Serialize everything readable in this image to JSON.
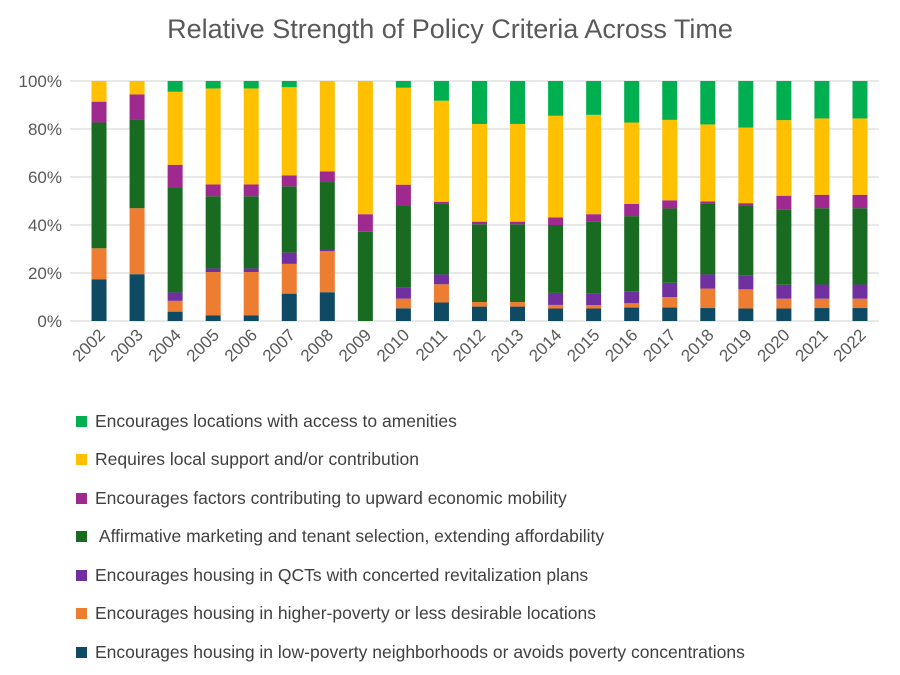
{
  "chart_data": {
    "type": "bar",
    "stacked": "percent",
    "title": "Relative Strength of Policy Criteria Across Time",
    "xlabel": "",
    "ylabel": "",
    "ylim": [
      0,
      100
    ],
    "yticks": [
      "0%",
      "20%",
      "40%",
      "60%",
      "80%",
      "100%"
    ],
    "grid": true,
    "legend_position": "bottom",
    "categories": [
      "2002",
      "2003",
      "2004",
      "2005",
      "2006",
      "2007",
      "2008",
      "2009",
      "2010",
      "2011",
      "2012",
      "2013",
      "2014",
      "2015",
      "2016",
      "2017",
      "2018",
      "2019",
      "2020",
      "2021",
      "2022"
    ],
    "series": [
      {
        "name": "Encourages housing in low-poverty neighborhoods or avoids poverty concentrations",
        "color": "#0E4A63",
        "values": [
          17.4,
          19.5,
          3.9,
          2.4,
          2.4,
          11.4,
          12.0,
          0,
          5.3,
          7.7,
          6.0,
          6.0,
          5.2,
          5.2,
          5.6,
          5.6,
          5.4,
          5.2,
          5.2,
          5.4,
          5.4
        ]
      },
      {
        "name": "Encourages housing in higher-poverty or less desirable locations",
        "color": "#ED7D31",
        "values": [
          12.9,
          27.5,
          4.5,
          18.0,
          18.0,
          12.4,
          17.1,
          0,
          4.0,
          7.6,
          1.9,
          1.9,
          1.5,
          1.4,
          1.8,
          4.4,
          8.1,
          8.0,
          4.1,
          3.9,
          3.9
        ]
      },
      {
        "name": "Encourages housing in QCTs with concerted revitalization plans",
        "color": "#7030A0",
        "values": [
          0,
          0,
          3.5,
          1.5,
          1.5,
          4.7,
          0.7,
          0,
          4.6,
          4.1,
          0,
          0,
          5.0,
          4.8,
          5.0,
          5.9,
          5.9,
          5.9,
          5.8,
          5.9,
          5.9
        ]
      },
      {
        "name": " Affirmative marketing and tenant selection, extending affordability",
        "color": "#1A6B22",
        "values": [
          52.4,
          37.0,
          43.9,
          30.1,
          30.1,
          27.6,
          28.1,
          37.2,
          34.4,
          29.7,
          32.4,
          32.4,
          28.3,
          30.0,
          31.3,
          31.0,
          29.7,
          29.0,
          31.3,
          31.8,
          31.8
        ]
      },
      {
        "name": "Encourages factors contributing to upward economic mobility",
        "color": "#A0298F",
        "values": [
          8.7,
          10.4,
          9.3,
          4.9,
          4.9,
          4.6,
          4.4,
          7.3,
          8.5,
          0.6,
          1.1,
          1.1,
          3.2,
          3.1,
          5.1,
          3.4,
          0.7,
          1.0,
          5.8,
          5.6,
          5.6
        ]
      },
      {
        "name": "Requires local support and/or contribution",
        "color": "#FFC000",
        "values": [
          8.6,
          5.6,
          30.4,
          40.0,
          40.0,
          36.7,
          37.7,
          55.5,
          40.4,
          42.1,
          40.7,
          40.7,
          42.3,
          41.4,
          33.9,
          33.5,
          32.1,
          31.5,
          31.5,
          31.8,
          31.8
        ]
      },
      {
        "name": "Encourages locations with access to amenities",
        "color": "#00B050",
        "values": [
          0,
          0,
          4.5,
          3.1,
          3.1,
          2.6,
          0,
          0,
          2.8,
          8.2,
          17.9,
          17.9,
          14.5,
          14.1,
          17.3,
          16.2,
          18.1,
          19.4,
          16.3,
          15.6,
          15.6
        ]
      }
    ]
  }
}
